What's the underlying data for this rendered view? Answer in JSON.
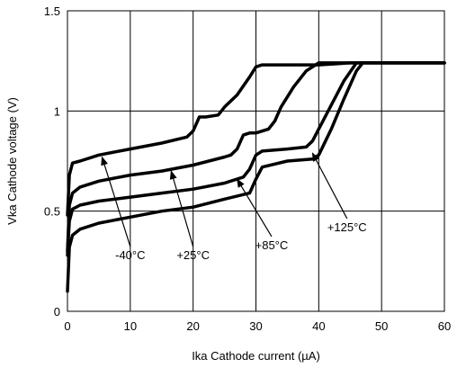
{
  "chart_data": {
    "type": "line",
    "title": "",
    "xlabel": "Ika Cathode current (µA)",
    "ylabel": "Vka Cathode voltage (V)",
    "xlim": [
      0,
      60
    ],
    "ylim": [
      0,
      1.5
    ],
    "x_ticks": [
      0,
      10,
      20,
      30,
      40,
      50,
      60
    ],
    "y_ticks": [
      0,
      0.5,
      1,
      1.5
    ],
    "x_tick_labels": [
      "0",
      "10",
      "20",
      "30",
      "40",
      "50",
      "60"
    ],
    "y_tick_labels": [
      "0",
      "0.5",
      "1",
      "1.5"
    ],
    "grid": true,
    "series": [
      {
        "name": "-40°C",
        "x": [
          0,
          0.3,
          0.8,
          2,
          5,
          10,
          15,
          19,
          20,
          21,
          22,
          24,
          25,
          27,
          29,
          30,
          31,
          35,
          40,
          45,
          50,
          55,
          60
        ],
        "y": [
          0.48,
          0.68,
          0.74,
          0.75,
          0.78,
          0.81,
          0.84,
          0.87,
          0.9,
          0.97,
          0.97,
          0.98,
          1.02,
          1.08,
          1.17,
          1.22,
          1.23,
          1.23,
          1.23,
          1.24,
          1.24,
          1.24,
          1.24
        ]
      },
      {
        "name": "+25°C",
        "x": [
          0,
          0.3,
          0.8,
          2,
          5,
          10,
          15,
          20,
          25,
          26,
          27,
          28,
          29,
          30,
          32,
          33,
          34,
          36,
          38,
          40,
          42,
          60
        ],
        "y": [
          0.3,
          0.53,
          0.59,
          0.62,
          0.65,
          0.68,
          0.7,
          0.73,
          0.77,
          0.78,
          0.81,
          0.88,
          0.89,
          0.89,
          0.91,
          0.95,
          1.02,
          1.12,
          1.2,
          1.24,
          1.24,
          1.24
        ]
      },
      {
        "name": "+85°C",
        "x": [
          0,
          0.3,
          0.8,
          2,
          5,
          10,
          15,
          20,
          25,
          28,
          29,
          30,
          31,
          35,
          38,
          39,
          40,
          42,
          44,
          46,
          48,
          60
        ],
        "y": [
          0.28,
          0.45,
          0.51,
          0.53,
          0.55,
          0.57,
          0.59,
          0.61,
          0.64,
          0.67,
          0.71,
          0.78,
          0.8,
          0.81,
          0.82,
          0.85,
          0.91,
          1.03,
          1.15,
          1.24,
          1.24,
          1.24
        ]
      },
      {
        "name": "+125°C",
        "x": [
          0,
          0.3,
          0.8,
          2,
          5,
          10,
          15,
          20,
          25,
          29,
          30,
          31,
          35,
          39,
          40,
          42,
          44,
          46,
          47,
          60
        ],
        "y": [
          0.1,
          0.32,
          0.38,
          0.41,
          0.44,
          0.47,
          0.5,
          0.52,
          0.56,
          0.59,
          0.66,
          0.72,
          0.75,
          0.76,
          0.78,
          0.91,
          1.06,
          1.2,
          1.24,
          1.24
        ]
      }
    ],
    "annotations": [
      {
        "text": "-40°C",
        "x": 5.5,
        "y": 0.77,
        "label_x": 10,
        "label_y": 0.26
      },
      {
        "text": "+25°C",
        "x": 16.5,
        "y": 0.7,
        "label_x": 20,
        "label_y": 0.26
      },
      {
        "text": "+85°C",
        "x": 27,
        "y": 0.66,
        "label_x": 32.5,
        "label_y": 0.31
      },
      {
        "text": "+125°C",
        "x": 39,
        "y": 0.79,
        "label_x": 44.5,
        "label_y": 0.4
      }
    ]
  }
}
